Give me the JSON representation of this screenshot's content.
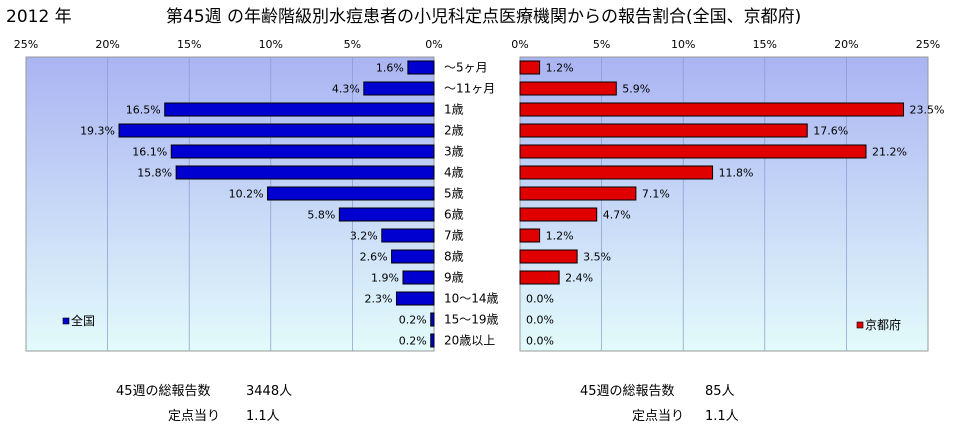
{
  "header": {
    "year": "2012 年",
    "title": "第45週 の年齢階級別水痘患者の小児科定点医療機関からの報告割合(全国、京都府)"
  },
  "chart_data": {
    "type": "bar",
    "orientation": "horizontal",
    "categories": [
      "～5ヶ月",
      "～11ヶ月",
      "1歳",
      "2歳",
      "3歳",
      "4歳",
      "5歳",
      "6歳",
      "7歳",
      "8歳",
      "9歳",
      "10～14歳",
      "15～19歳",
      "20歳以上"
    ],
    "axis_ticks": [
      "0%",
      "5%",
      "10%",
      "15%",
      "20%",
      "25%"
    ],
    "xlim": [
      0,
      25
    ],
    "grid": true,
    "series": [
      {
        "name": "全国",
        "color": "#0000d0",
        "values": [
          1.6,
          4.3,
          16.5,
          19.3,
          16.1,
          15.8,
          10.2,
          5.8,
          3.2,
          2.6,
          1.9,
          2.3,
          0.2,
          0.2
        ],
        "labels": [
          "1.6%",
          "4.3%",
          "16.5%",
          "19.3%",
          "16.1%",
          "15.8%",
          "10.2%",
          "5.8%",
          "3.2%",
          "2.6%",
          "1.9%",
          "2.3%",
          "0.2%",
          "0.2%"
        ],
        "legend_position": "bottom-left"
      },
      {
        "name": "京都府",
        "color": "#e00000",
        "values": [
          1.2,
          5.9,
          23.5,
          17.6,
          21.2,
          11.8,
          7.1,
          4.7,
          1.2,
          3.5,
          2.4,
          0.0,
          0.0,
          0.0
        ],
        "labels": [
          "1.2%",
          "5.9%",
          "23.5%",
          "17.6%",
          "21.2%",
          "11.8%",
          "7.1%",
          "4.7%",
          "1.2%",
          "3.5%",
          "2.4%",
          "0.0%",
          "0.0%",
          "0.0%"
        ],
        "legend_position": "bottom-right"
      }
    ],
    "colors": {
      "plot_top": "#aab4f2",
      "plot_bottom": "#e3fbfb",
      "grid": "#8899cc"
    }
  },
  "stats": {
    "national": {
      "total_label": "45週の総報告数",
      "total_value": "3448人",
      "per_label": "定点当り",
      "per_value": "1.1人"
    },
    "kyoto": {
      "total_label": "45週の総報告数",
      "total_value": "85人",
      "per_label": "定点当り",
      "per_value": "1.1人"
    }
  }
}
